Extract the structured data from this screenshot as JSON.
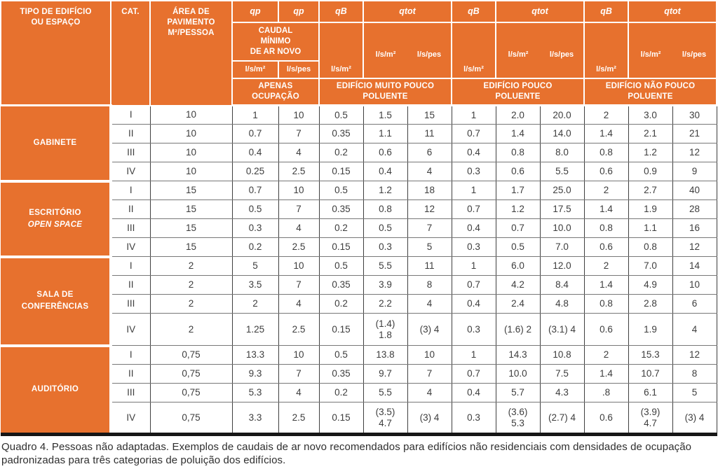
{
  "colors": {
    "orange": "#E7712E",
    "grid_vertical": "#3f3f3f",
    "grid_horizontal": "#777777",
    "bottom_bar": "#161616",
    "body_text": "#3d3d3d"
  },
  "header": {
    "col_tipo": "TIPO DE EDIFÍCIO\nOU ESPAÇO",
    "col_cat": "CAT.",
    "col_area": "ÁREA DE\nPAVIMENTO\nM²/PESSOA",
    "qp_label": "qp",
    "qb_label": "qB",
    "qtot_label": "qtot",
    "caudal_minimo": "CAUDAL\nMÍNIMO\nDE AR NOVO",
    "unit_m2": "l/s/m²",
    "unit_pes": "l/s/pes",
    "apenas": "APENAS\nOCUPAÇÃO",
    "groups": [
      "EDIFÍCIO MUITO POUCO\nPOLUENTE",
      "EDIFÍCIO POUCO\nPOLUENTE",
      "EDIFÍCIO NÃO POUCO\nPOLUENTE"
    ]
  },
  "sections": [
    {
      "label": "GABINETE",
      "label_italic": "",
      "rows": [
        {
          "cat": "I",
          "area": "10",
          "values": [
            "1",
            "10",
            "0.5",
            "1.5",
            "15",
            "1",
            "2.0",
            "20.0",
            "2",
            "3.0",
            "30"
          ]
        },
        {
          "cat": "II",
          "area": "10",
          "values": [
            "0.7",
            "7",
            "0.35",
            "1.1",
            "11",
            "0.7",
            "1.4",
            "14.0",
            "1.4",
            "2.1",
            "21"
          ]
        },
        {
          "cat": "III",
          "area": "10",
          "values": [
            "0.4",
            "4",
            "0.2",
            "0.6",
            "6",
            "0.4",
            "0.8",
            "8.0",
            "0.8",
            "1.2",
            "12"
          ]
        },
        {
          "cat": "IV",
          "area": "10",
          "values": [
            "0.25",
            "2.5",
            "0.15",
            "0.4",
            "4",
            "0.3",
            "0.6",
            "5.5",
            "0.6",
            "0.9",
            "9"
          ]
        }
      ]
    },
    {
      "label": "ESCRITÓRIO",
      "label_italic": "OPEN SPACE",
      "rows": [
        {
          "cat": "I",
          "area": "15",
          "values": [
            "0.7",
            "10",
            "0.5",
            "1.2",
            "18",
            "1",
            "1.7",
            "25.0",
            "2",
            "2.7",
            "40"
          ]
        },
        {
          "cat": "II",
          "area": "15",
          "values": [
            "0.5",
            "7",
            "0.35",
            "0.8",
            "12",
            "0.7",
            "1.2",
            "17.5",
            "1.4",
            "1.9",
            "28"
          ]
        },
        {
          "cat": "III",
          "area": "15",
          "values": [
            "0.3",
            "4",
            "0.2",
            "0.5",
            "7",
            "0.4",
            "0.7",
            "10.0",
            "0.8",
            "1.1",
            "16"
          ]
        },
        {
          "cat": "IV",
          "area": "15",
          "values": [
            "0.2",
            "2.5",
            "0.15",
            "0.3",
            "5",
            "0.3",
            "0.5",
            "7.0",
            "0.6",
            "0.8",
            "12"
          ]
        }
      ]
    },
    {
      "label": "SALA DE\nCONFERÊNCIAS",
      "label_italic": "",
      "rows": [
        {
          "cat": "I",
          "area": "2",
          "values": [
            "5",
            "10",
            "0.5",
            "5.5",
            "11",
            "1",
            "6.0",
            "12.0",
            "2",
            "7.0",
            "14"
          ]
        },
        {
          "cat": "II",
          "area": "2",
          "values": [
            "3.5",
            "7",
            "0.35",
            "3.9",
            "8",
            "0.7",
            "4.2",
            "8.4",
            "1.4",
            "4.9",
            "10"
          ]
        },
        {
          "cat": "III",
          "area": "2",
          "values": [
            "2",
            "4",
            "0.2",
            "2.2",
            "4",
            "0.4",
            "2.4",
            "4.8",
            "0.8",
            "2.8",
            "6"
          ]
        },
        {
          "cat": "IV",
          "area": "2",
          "values": [
            "1.25",
            "2.5",
            "0.15",
            "(1.4)\n1.8",
            "(3) 4",
            "0.3",
            "(1.6) 2",
            "(3.1) 4",
            "0.6",
            "1.9",
            "4"
          ]
        }
      ]
    },
    {
      "label": "AUDITÓRIO",
      "label_italic": "",
      "rows": [
        {
          "cat": "I",
          "area": "0,75",
          "values": [
            "13.3",
            "10",
            "0.5",
            "13.8",
            "10",
            "1",
            "14.3",
            "10.8",
            "2",
            "15.3",
            "12"
          ]
        },
        {
          "cat": "II",
          "area": "0,75",
          "values": [
            "9.3",
            "7",
            "0.35",
            "9.7",
            "7",
            "0.7",
            "10.0",
            "7.5",
            "1.4",
            "10.7",
            "8"
          ]
        },
        {
          "cat": "III",
          "area": "0,75",
          "values": [
            "5.3",
            "4",
            "0.2",
            "5.5",
            "4",
            "0.4",
            "5.7",
            "4.3",
            ".8",
            "6.1",
            "5"
          ]
        },
        {
          "cat": "IV",
          "area": "0,75",
          "values": [
            "3.3",
            "2.5",
            "0.15",
            "(3.5)\n4.7",
            "(3) 4",
            "0.3",
            "(3.6)\n5.3",
            "(2.7) 4",
            "0.6",
            "(3.9)\n4.7",
            "(3) 4"
          ]
        }
      ]
    }
  ],
  "caption": "Quadro 4. Pessoas não adaptadas. Exemplos de caudais de ar novo recomendados para edifícios não residenciais com densidades de ocupação padronizadas para três categorias de poluição dos edifícios."
}
